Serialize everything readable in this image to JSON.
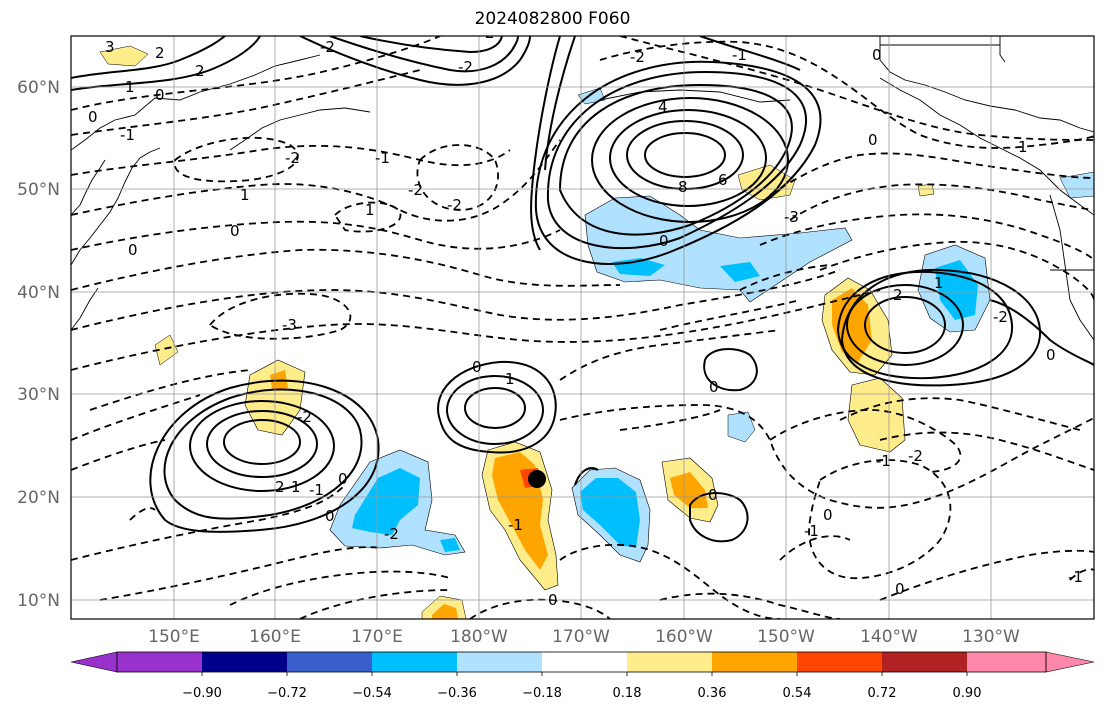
{
  "title": "2024082800 F060",
  "latitude_labels": [
    "10°N",
    "20°N",
    "30°N",
    "40°N",
    "50°N",
    "60°N"
  ],
  "longitude_labels": [
    "150°E",
    "160°E",
    "170°E",
    "180°W",
    "170°W",
    "160°W",
    "150°W",
    "140°W",
    "130°W"
  ],
  "colorbar": {
    "tick_labels": [
      "−0.90",
      "−0.72",
      "−0.54",
      "−0.36",
      "−0.18",
      "0.18",
      "0.36",
      "0.54",
      "0.72",
      "0.90"
    ],
    "colors": [
      "#9932cc",
      "#00008b",
      "#3a5fcd",
      "#00bfff",
      "#b0e2ff",
      "#ffffff",
      "#ffec8b",
      "#ffa500",
      "#ff4500",
      "#b22222",
      "#ff88aa"
    ]
  },
  "contour_labels": [
    "3",
    "2",
    "1",
    "0",
    "2",
    "1",
    "-2",
    "-1",
    "-2",
    "0",
    "-1",
    "-2",
    "0",
    "-2",
    "1",
    "0",
    "4",
    "6",
    "8",
    "-2",
    "-1",
    "0",
    "0",
    "2",
    "1",
    "-3",
    "-2",
    "-3",
    "0",
    "1",
    "-2",
    "2",
    "1",
    "0",
    "-1",
    "-2",
    "-1",
    "0",
    "0",
    "-1",
    "0",
    "0",
    "-1",
    "-2",
    "0",
    "2",
    "1",
    "-2",
    "0",
    "0",
    "-1",
    "0"
  ],
  "marker": "storm-center-dot"
}
